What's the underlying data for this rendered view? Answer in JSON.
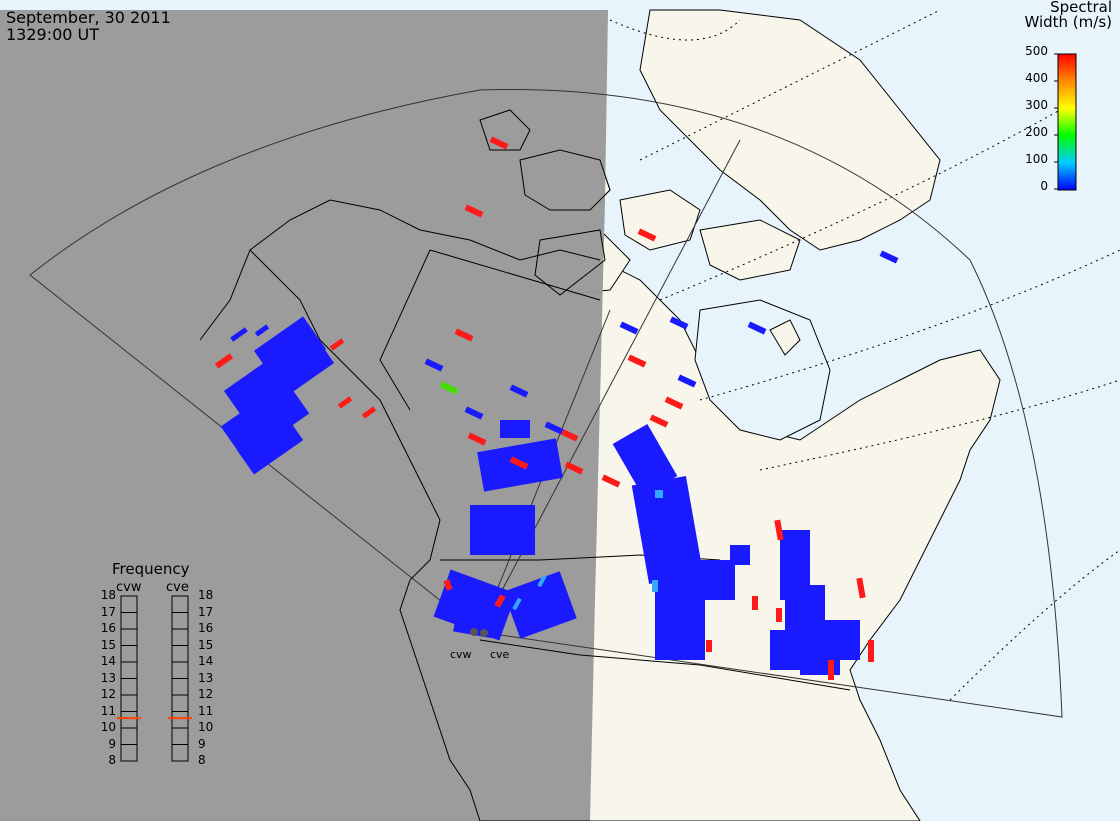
{
  "header": {
    "date": "September, 30 2011",
    "time": "1329:00 UT"
  },
  "colorbar": {
    "title_line1": "Spectral",
    "title_line2": "Width (m/s)",
    "ticks": [
      "500",
      "400",
      "300",
      "200",
      "100",
      "0"
    ],
    "colors": [
      "#0000ff",
      "#00ccff",
      "#00ff00",
      "#ffff00",
      "#ff8800",
      "#ff0000"
    ]
  },
  "frequency": {
    "title": "Frequency",
    "radars": [
      "cvw",
      "cve"
    ],
    "ticks": [
      "18",
      "17",
      "16",
      "15",
      "14",
      "13",
      "12",
      "11",
      "10",
      "9",
      "8"
    ],
    "cvw_value": 10.6,
    "cve_value": 10.6
  },
  "sites": {
    "cvw": "cvw",
    "cve": "cve"
  },
  "colors": {
    "night": "#999999",
    "day_ocean": "#e8f4fc",
    "land": "#f8f6ea",
    "scatter_low": "#1a1aff",
    "scatter_high": "#ff1a1a"
  }
}
